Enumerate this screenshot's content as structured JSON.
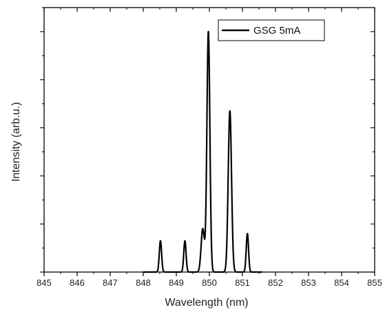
{
  "chart_data": {
    "type": "line",
    "title": "",
    "xlabel": "Wavelength (nm)",
    "ylabel": "Intensity (arb.u.)",
    "xlim": [
      845,
      855
    ],
    "ylim": [
      0,
      1.1
    ],
    "xticks": [
      845,
      846,
      847,
      848,
      849,
      850,
      851,
      852,
      853,
      854,
      855
    ],
    "xtick_labels": [
      "845",
      "846",
      "847",
      "848",
      "849",
      "850",
      "851",
      "852",
      "853",
      "854",
      "855"
    ],
    "yticks_labeled": false,
    "grid": false,
    "legend_position": "top-right",
    "series": [
      {
        "name": "GSG 5mA",
        "color": "#000000",
        "peaks": [
          {
            "center": 848.52,
            "height": 0.13,
            "width": 0.035
          },
          {
            "center": 849.26,
            "height": 0.13,
            "width": 0.035
          },
          {
            "center": 849.8,
            "height": 0.18,
            "width": 0.05
          },
          {
            "center": 849.97,
            "height": 1.0,
            "width": 0.045
          },
          {
            "center": 850.62,
            "height": 0.67,
            "width": 0.05
          },
          {
            "center": 851.15,
            "height": 0.16,
            "width": 0.035
          }
        ],
        "x_range": [
          848.0,
          851.6
        ]
      }
    ]
  }
}
